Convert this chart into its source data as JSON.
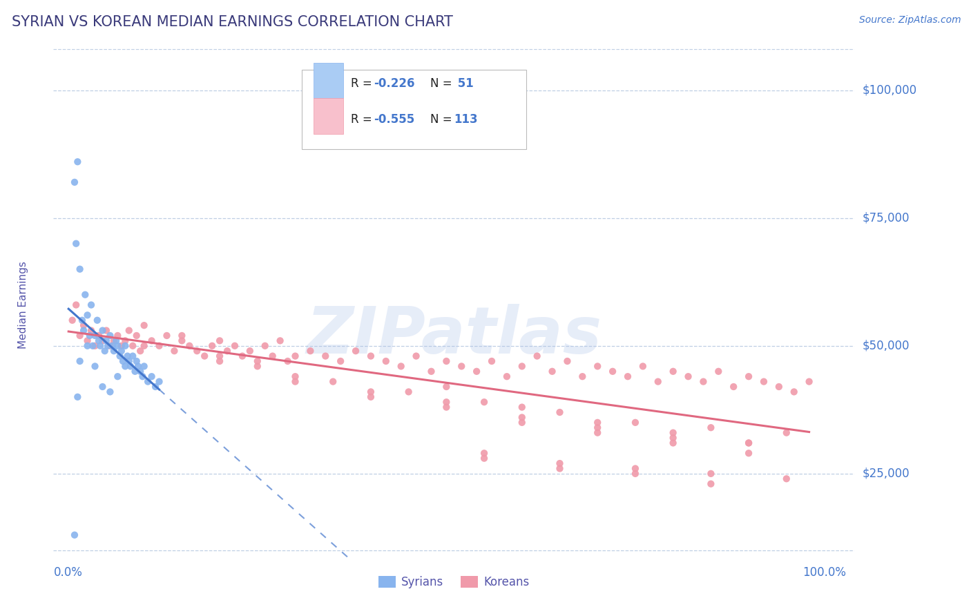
{
  "title": "SYRIAN VS KOREAN MEDIAN EARNINGS CORRELATION CHART",
  "source_text": "Source: ZipAtlas.com",
  "ylabel": "Median Earnings",
  "y_tick_labels": [
    "$25,000",
    "$50,000",
    "$75,000",
    "$100,000"
  ],
  "y_tick_values": [
    25000,
    50000,
    75000,
    100000
  ],
  "ylim": [
    8000,
    108000
  ],
  "xlim": [
    -0.02,
    1.04
  ],
  "watermark": "ZIPatlas",
  "watermark_color": "#a8bfe8",
  "background_color": "#ffffff",
  "grid_color": "#b0c4de",
  "title_color": "#3a3a7a",
  "axis_label_color": "#5555aa",
  "tick_label_color": "#4477cc",
  "syrian_color": "#88b4ee",
  "korean_color": "#f09aaa",
  "syrian_line_color": "#4477cc",
  "korean_line_color": "#e06880",
  "syrian_scatter_x": [
    0.008,
    0.012,
    0.01,
    0.018,
    0.022,
    0.015,
    0.02,
    0.025,
    0.028,
    0.03,
    0.032,
    0.035,
    0.038,
    0.04,
    0.042,
    0.045,
    0.048,
    0.05,
    0.052,
    0.055,
    0.058,
    0.06,
    0.063,
    0.065,
    0.068,
    0.07,
    0.072,
    0.075,
    0.078,
    0.08,
    0.082,
    0.085,
    0.088,
    0.09,
    0.092,
    0.095,
    0.098,
    0.1,
    0.105,
    0.11,
    0.115,
    0.12,
    0.008,
    0.015,
    0.025,
    0.035,
    0.045,
    0.055,
    0.065,
    0.075,
    0.012
  ],
  "syrian_scatter_y": [
    82000,
    86000,
    70000,
    55000,
    60000,
    65000,
    53000,
    56000,
    52000,
    58000,
    50000,
    52000,
    55000,
    51000,
    50000,
    53000,
    49000,
    51000,
    50000,
    52000,
    50000,
    49000,
    51000,
    50000,
    48000,
    49000,
    47000,
    50000,
    48000,
    47000,
    46000,
    48000,
    45000,
    47000,
    46000,
    45000,
    44000,
    46000,
    43000,
    44000,
    42000,
    43000,
    13000,
    47000,
    50000,
    46000,
    42000,
    41000,
    44000,
    46000,
    40000
  ],
  "korean_scatter_x": [
    0.005,
    0.01,
    0.015,
    0.02,
    0.025,
    0.03,
    0.035,
    0.04,
    0.045,
    0.05,
    0.055,
    0.06,
    0.065,
    0.07,
    0.075,
    0.08,
    0.085,
    0.09,
    0.095,
    0.1,
    0.11,
    0.12,
    0.13,
    0.14,
    0.15,
    0.16,
    0.17,
    0.18,
    0.19,
    0.2,
    0.21,
    0.22,
    0.23,
    0.24,
    0.25,
    0.26,
    0.27,
    0.28,
    0.29,
    0.3,
    0.32,
    0.34,
    0.36,
    0.38,
    0.4,
    0.42,
    0.44,
    0.46,
    0.48,
    0.5,
    0.52,
    0.54,
    0.56,
    0.58,
    0.6,
    0.62,
    0.64,
    0.66,
    0.68,
    0.7,
    0.72,
    0.74,
    0.76,
    0.78,
    0.8,
    0.82,
    0.84,
    0.86,
    0.88,
    0.9,
    0.92,
    0.94,
    0.96,
    0.98,
    0.15,
    0.25,
    0.35,
    0.45,
    0.55,
    0.65,
    0.75,
    0.85,
    0.95,
    0.2,
    0.3,
    0.4,
    0.5,
    0.6,
    0.7,
    0.8,
    0.9,
    0.1,
    0.2,
    0.3,
    0.4,
    0.5,
    0.6,
    0.7,
    0.8,
    0.9,
    0.55,
    0.65,
    0.75,
    0.85,
    0.95,
    0.5,
    0.6,
    0.7,
    0.8,
    0.9,
    0.55,
    0.65,
    0.75,
    0.85
  ],
  "korean_scatter_y": [
    55000,
    58000,
    52000,
    54000,
    51000,
    53000,
    50000,
    52000,
    51000,
    53000,
    50000,
    51000,
    52000,
    50000,
    51000,
    53000,
    50000,
    52000,
    49000,
    50000,
    51000,
    50000,
    52000,
    49000,
    51000,
    50000,
    49000,
    48000,
    50000,
    51000,
    49000,
    50000,
    48000,
    49000,
    47000,
    50000,
    48000,
    51000,
    47000,
    48000,
    49000,
    48000,
    47000,
    49000,
    48000,
    47000,
    46000,
    48000,
    45000,
    47000,
    46000,
    45000,
    47000,
    44000,
    46000,
    48000,
    45000,
    47000,
    44000,
    46000,
    45000,
    44000,
    46000,
    43000,
    45000,
    44000,
    43000,
    45000,
    42000,
    44000,
    43000,
    42000,
    41000,
    43000,
    52000,
    46000,
    43000,
    41000,
    39000,
    37000,
    35000,
    34000,
    33000,
    48000,
    44000,
    41000,
    39000,
    36000,
    34000,
    32000,
    31000,
    54000,
    47000,
    43000,
    40000,
    38000,
    35000,
    33000,
    31000,
    29000,
    29000,
    27000,
    26000,
    25000,
    24000,
    42000,
    38000,
    35000,
    33000,
    31000,
    28000,
    26000,
    25000,
    23000
  ]
}
